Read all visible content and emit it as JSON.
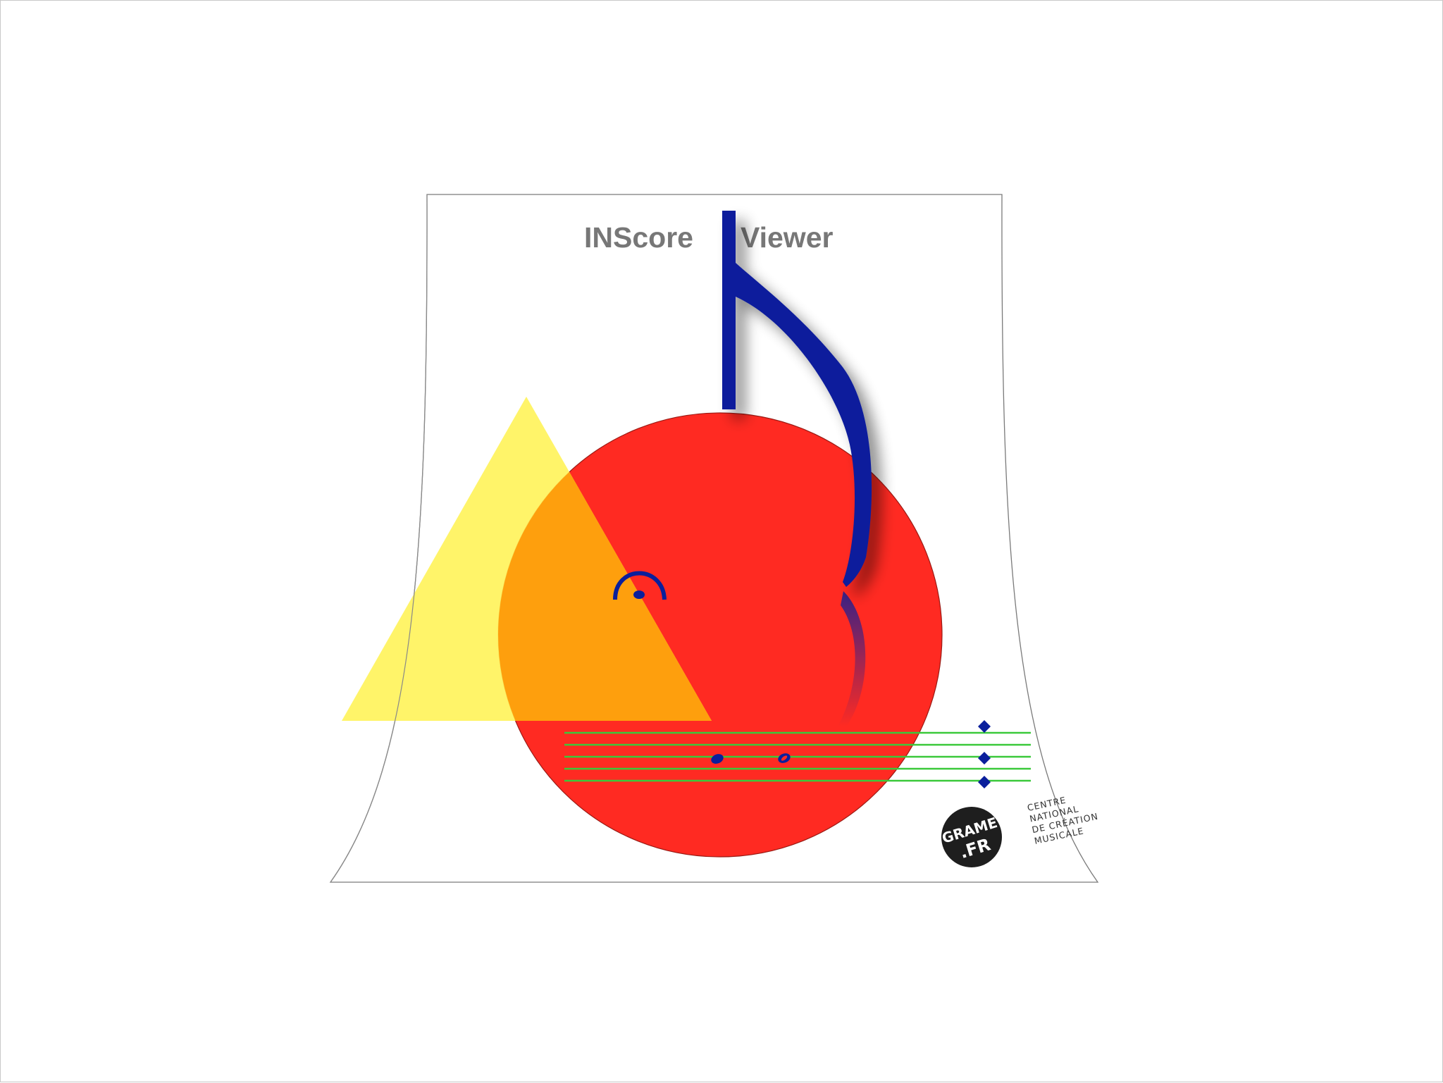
{
  "window": {
    "title_left": "INScore",
    "title_right": "Viewer"
  },
  "logo": {
    "line1": "GRAME",
    "line2": ".FR",
    "caption": [
      "CENTRE",
      "NATIONAL",
      "DE CRÉATION",
      "MUSICALE"
    ]
  },
  "colors": {
    "circle": "#ff2a22",
    "triangle": "#fff35c",
    "overlap": "#fe9f0d",
    "note_blue": "#0a1f9c",
    "staff_green": "#3ac93a",
    "title_gray": "#777777",
    "logo_black": "#1e1e1e"
  },
  "icons": {
    "eighth_note": "eighth-note-icon",
    "fermata": "fermata-icon",
    "quarter_note": "quarter-note-head-icon",
    "half_note": "half-note-head-icon",
    "diamond_markers": "diamond-marker-icon"
  }
}
